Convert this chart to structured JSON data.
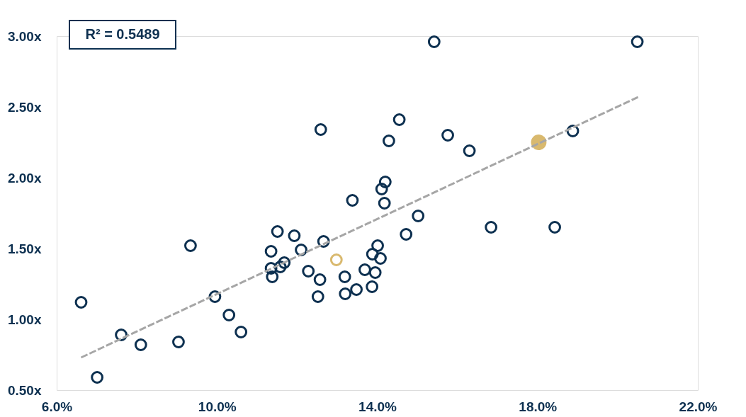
{
  "chart_data": {
    "type": "scatter",
    "xlim": [
      6.0,
      22.0
    ],
    "xticks": [
      {
        "value": 6,
        "label": "6.0%"
      },
      {
        "value": 10,
        "label": "10.0%"
      },
      {
        "value": 14,
        "label": "14.0%"
      },
      {
        "value": 18,
        "label": "18.0%"
      },
      {
        "value": 22,
        "label": "22.0%"
      }
    ],
    "ylim": [
      0.5,
      3.0
    ],
    "yticks": [
      {
        "value": 0.5,
        "label": "0.50x"
      },
      {
        "value": 1.0,
        "label": "1.00x"
      },
      {
        "value": 1.5,
        "label": "1.50x"
      },
      {
        "value": 2.0,
        "label": "2.00x"
      },
      {
        "value": 2.5,
        "label": "2.50x"
      },
      {
        "value": 3.0,
        "label": "3.00x"
      }
    ],
    "grid": false,
    "marker": "circle",
    "annotations": [
      "R² = 0.5489"
    ],
    "series": [
      {
        "color": "#0d3050",
        "x": [
          6.61,
          7.01,
          7.61,
          8.1,
          9.04,
          9.34,
          9.95,
          10.3,
          10.6,
          11.35,
          11.35,
          11.38,
          11.51,
          11.58,
          11.68,
          11.93,
          12.1,
          12.28,
          12.52,
          12.57,
          12.59,
          12.66,
          13.19,
          13.2,
          13.38,
          13.48,
          13.69,
          13.87,
          13.88,
          13.95,
          14.01,
          14.08,
          14.11,
          14.18,
          14.2,
          14.29,
          14.55,
          14.72,
          15.02,
          15.42,
          15.76,
          16.3,
          16.84,
          18.43,
          18.88,
          20.49
        ],
        "values": [
          1.12,
          0.59,
          0.89,
          0.82,
          0.84,
          1.52,
          1.16,
          1.03,
          0.91,
          1.48,
          1.36,
          1.3,
          1.62,
          1.37,
          1.4,
          1.59,
          1.49,
          1.34,
          1.16,
          1.28,
          2.34,
          1.55,
          1.3,
          1.18,
          1.84,
          1.21,
          1.35,
          1.23,
          1.46,
          1.33,
          1.52,
          1.43,
          1.92,
          1.82,
          1.97,
          2.26,
          2.41,
          1.6,
          1.73,
          2.96,
          2.3,
          2.19,
          1.65,
          1.65,
          2.33,
          2.96
        ]
      },
      {
        "color": "#d9b96e",
        "x": [
          12.98
        ],
        "values": [
          1.42
        ]
      },
      {
        "type": "bubble",
        "color": "#d9b96e",
        "x": [
          18.03
        ],
        "values": [
          2.25
        ],
        "sizes": [
          1
        ]
      },
      {
        "type": "line",
        "color": "#a6a6a6",
        "line_style": "dashed",
        "marker": "none",
        "x": [
          6.61,
          20.51
        ],
        "values": [
          0.73,
          2.57
        ]
      }
    ]
  }
}
